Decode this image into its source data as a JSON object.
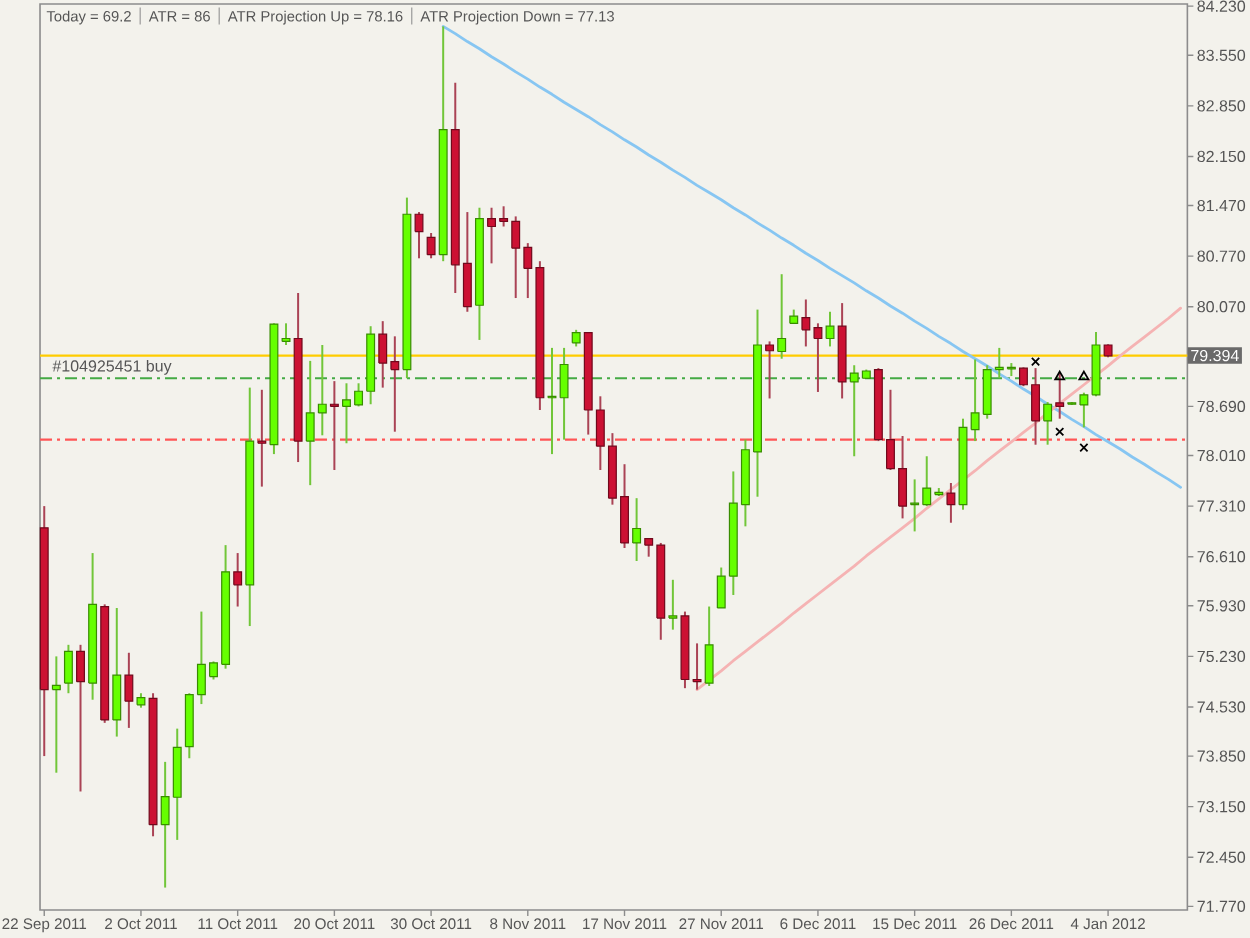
{
  "chart_data": {
    "type": "candlestick",
    "annotations": [
      "Today = 69.2",
      "ATR = 86",
      "ATR Projection Up = 78.16",
      "ATR Projection Down = 77.13"
    ],
    "categories": [
      "22 Sep 2011",
      null,
      null,
      null,
      null,
      null,
      null,
      null,
      "2 Oct 2011",
      null,
      null,
      null,
      null,
      null,
      null,
      null,
      "11 Oct 2011",
      null,
      null,
      null,
      null,
      null,
      null,
      null,
      "20 Oct 2011",
      null,
      null,
      null,
      null,
      null,
      null,
      null,
      "30 Oct 2011",
      null,
      null,
      null,
      null,
      null,
      null,
      null,
      "8 Nov 2011",
      null,
      null,
      null,
      null,
      null,
      null,
      null,
      "17 Nov 2011",
      null,
      null,
      null,
      null,
      null,
      null,
      null,
      "27 Nov 2011",
      null,
      null,
      null,
      null,
      null,
      null,
      null,
      "6 Dec 2011",
      null,
      null,
      null,
      null,
      null,
      null,
      null,
      "15 Dec 2011",
      null,
      null,
      null,
      null,
      null,
      null,
      null,
      "26 Dec 2011",
      null,
      null,
      null,
      null,
      null,
      null,
      null,
      "4 Jan 2012",
      null,
      null,
      null,
      null,
      null,
      null
    ],
    "ohlc": [
      [
        77.01,
        77.31,
        73.85,
        74.77
      ],
      [
        74.77,
        75.23,
        73.62,
        74.83
      ],
      [
        74.86,
        75.39,
        74.72,
        75.3
      ],
      [
        75.3,
        75.39,
        73.36,
        74.88
      ],
      [
        74.86,
        76.66,
        74.63,
        75.95
      ],
      [
        75.92,
        75.95,
        74.31,
        74.35
      ],
      [
        74.35,
        75.9,
        74.12,
        74.97
      ],
      [
        74.97,
        75.28,
        74.24,
        74.61
      ],
      [
        74.56,
        74.72,
        74.52,
        74.66
      ],
      [
        74.65,
        74.72,
        72.74,
        72.9
      ],
      [
        72.9,
        73.77,
        72.03,
        73.29
      ],
      [
        73.28,
        74.23,
        72.69,
        73.97
      ],
      [
        73.98,
        74.72,
        73.82,
        74.7
      ],
      [
        74.7,
        75.85,
        74.57,
        75.12
      ],
      [
        74.95,
        75.16,
        74.91,
        75.14
      ],
      [
        75.12,
        76.77,
        75.06,
        76.4
      ],
      [
        76.4,
        76.66,
        75.92,
        76.22
      ],
      [
        76.22,
        78.95,
        75.65,
        78.21
      ],
      [
        78.21,
        78.92,
        77.58,
        78.18
      ],
      [
        78.16,
        79.84,
        78.03,
        79.83
      ],
      [
        79.59,
        79.84,
        79.54,
        79.63
      ],
      [
        79.63,
        80.26,
        77.92,
        78.21
      ],
      [
        78.21,
        79.32,
        77.6,
        78.6
      ],
      [
        78.6,
        79.54,
        78.29,
        78.72
      ],
      [
        78.72,
        79.04,
        77.81,
        78.69
      ],
      [
        78.69,
        79.01,
        78.18,
        78.78
      ],
      [
        78.71,
        79.01,
        78.69,
        78.9
      ],
      [
        78.9,
        79.8,
        78.72,
        79.69
      ],
      [
        79.69,
        79.87,
        78.95,
        79.29
      ],
      [
        79.31,
        79.66,
        78.34,
        79.2
      ],
      [
        79.2,
        81.58,
        79.08,
        81.35
      ],
      [
        81.35,
        81.38,
        80.74,
        81.11
      ],
      [
        81.03,
        81.09,
        80.74,
        80.79
      ],
      [
        80.79,
        83.95,
        80.7,
        82.52
      ],
      [
        82.52,
        83.17,
        80.26,
        80.65
      ],
      [
        80.67,
        81.38,
        80.0,
        80.07
      ],
      [
        80.09,
        81.44,
        79.61,
        81.29
      ],
      [
        81.29,
        81.44,
        80.67,
        81.18
      ],
      [
        81.29,
        81.46,
        81.18,
        81.25
      ],
      [
        81.25,
        81.32,
        80.19,
        80.88
      ],
      [
        80.89,
        80.95,
        80.19,
        80.6
      ],
      [
        80.61,
        80.7,
        78.64,
        78.81
      ],
      [
        78.81,
        79.5,
        78.03,
        78.83
      ],
      [
        78.81,
        79.5,
        78.23,
        79.27
      ],
      [
        79.57,
        79.75,
        79.52,
        79.71
      ],
      [
        79.71,
        79.72,
        78.3,
        78.64
      ],
      [
        78.64,
        78.83,
        77.81,
        78.14
      ],
      [
        78.14,
        78.32,
        77.33,
        77.42
      ],
      [
        77.44,
        77.89,
        76.73,
        76.8
      ],
      [
        76.8,
        77.42,
        76.55,
        77.0
      ],
      [
        76.86,
        76.86,
        76.61,
        76.77
      ],
      [
        76.77,
        76.8,
        75.46,
        75.76
      ],
      [
        75.76,
        76.29,
        75.6,
        75.79
      ],
      [
        75.79,
        75.85,
        74.79,
        74.91
      ],
      [
        74.91,
        75.41,
        74.77,
        74.88
      ],
      [
        74.86,
        75.92,
        74.82,
        75.39
      ],
      [
        75.9,
        76.46,
        75.9,
        76.34
      ],
      [
        76.34,
        77.79,
        76.08,
        77.35
      ],
      [
        77.33,
        78.23,
        77.03,
        78.09
      ],
      [
        78.06,
        80.03,
        77.44,
        79.54
      ],
      [
        79.54,
        79.59,
        78.8,
        79.46
      ],
      [
        79.45,
        80.52,
        79.35,
        79.63
      ],
      [
        79.84,
        80.03,
        79.84,
        79.94
      ],
      [
        79.92,
        80.17,
        79.52,
        79.75
      ],
      [
        79.78,
        79.84,
        78.89,
        79.63
      ],
      [
        79.63,
        80.0,
        79.52,
        79.8
      ],
      [
        79.8,
        80.12,
        78.8,
        79.03
      ],
      [
        79.03,
        79.26,
        78.0,
        79.15
      ],
      [
        79.08,
        79.2,
        79.08,
        79.18
      ],
      [
        79.2,
        79.22,
        78.21,
        78.23
      ],
      [
        78.23,
        78.92,
        77.81,
        77.83
      ],
      [
        77.83,
        78.28,
        77.14,
        77.31
      ],
      [
        77.33,
        77.68,
        76.96,
        77.35
      ],
      [
        77.33,
        78.0,
        77.31,
        77.56
      ],
      [
        77.47,
        77.56,
        77.45,
        77.5
      ],
      [
        77.49,
        77.63,
        77.08,
        77.33
      ],
      [
        77.33,
        78.52,
        77.26,
        78.4
      ],
      [
        78.37,
        79.34,
        78.21,
        78.6
      ],
      [
        78.58,
        79.26,
        78.52,
        79.2
      ],
      [
        79.2,
        79.5,
        79.08,
        79.23
      ],
      [
        79.21,
        79.29,
        79.11,
        79.23
      ],
      [
        79.22,
        79.23,
        78.97,
        78.99
      ],
      [
        78.99,
        79.22,
        78.16,
        78.49
      ],
      [
        78.49,
        78.75,
        78.16,
        78.72
      ],
      [
        78.74,
        79.15,
        78.52,
        78.69
      ],
      [
        78.72,
        78.75,
        78.71,
        78.74
      ],
      [
        78.71,
        78.88,
        78.4,
        78.85
      ],
      [
        78.85,
        79.72,
        78.83,
        79.54
      ],
      [
        79.54,
        79.55,
        79.37,
        79.39
      ],
      null,
      null,
      null,
      null,
      null,
      null
    ],
    "colors": [
      "#cc1133",
      "#66ff00",
      "#66ff00",
      "#cc1133",
      "#66ff00",
      "#cc1133",
      "#66ff00",
      "#cc1133",
      "#66ff00",
      "#cc1133",
      "#66ff00",
      "#66ff00",
      "#66ff00",
      "#66ff00",
      "#66ff00",
      "#66ff00",
      "#cc1133",
      "#66ff00",
      "#cc1133",
      "#66ff00",
      "#66ff00",
      "#cc1133",
      "#66ff00",
      "#66ff00",
      "#cc1133",
      "#66ff00",
      "#66ff00",
      "#66ff00",
      "#cc1133",
      "#cc1133",
      "#66ff00",
      "#cc1133",
      "#cc1133",
      "#66ff00",
      "#cc1133",
      "#cc1133",
      "#66ff00",
      "#cc1133",
      "#cc1133",
      "#cc1133",
      "#cc1133",
      "#cc1133",
      "#66ff00",
      "#66ff00",
      "#66ff00",
      "#cc1133",
      "#cc1133",
      "#cc1133",
      "#cc1133",
      "#66ff00",
      "#cc1133",
      "#cc1133",
      "#66ff00",
      "#cc1133",
      "#cc1133",
      "#66ff00",
      "#66ff00",
      "#66ff00",
      "#66ff00",
      "#66ff00",
      "#cc1133",
      "#66ff00",
      "#66ff00",
      "#cc1133",
      "#cc1133",
      "#66ff00",
      "#cc1133",
      "#66ff00",
      "#66ff00",
      "#cc1133",
      "#cc1133",
      "#cc1133",
      "#66ff00",
      "#66ff00",
      "#66ff00",
      "#cc1133",
      "#66ff00",
      "#66ff00",
      "#66ff00",
      "#66ff00",
      "#66ff00",
      "#cc1133",
      "#cc1133",
      "#66ff00",
      "#cc1133",
      "#66ff00",
      "#66ff00",
      "#66ff00",
      "#cc1133",
      null,
      null,
      null,
      null,
      null,
      null
    ],
    "series": [
      {
        "type": "line",
        "color": "#87c6f2",
        "values": [
          null,
          null,
          null,
          null,
          null,
          null,
          null,
          null,
          null,
          null,
          null,
          null,
          null,
          null,
          null,
          null,
          null,
          null,
          null,
          null,
          null,
          null,
          null,
          null,
          null,
          null,
          null,
          null,
          null,
          null,
          null,
          null,
          null,
          83.95,
          83.85,
          83.74,
          83.64,
          83.53,
          83.43,
          83.32,
          83.22,
          83.11,
          83.01,
          82.9,
          82.8,
          82.7,
          82.59,
          82.49,
          82.38,
          82.28,
          82.17,
          82.07,
          81.96,
          81.86,
          81.75,
          81.65,
          81.55,
          81.44,
          81.34,
          81.23,
          81.13,
          81.02,
          80.92,
          80.81,
          80.71,
          80.6,
          80.5,
          80.4,
          80.29,
          80.19,
          80.08,
          79.98,
          79.87,
          79.77,
          79.66,
          79.56,
          79.45,
          79.35,
          79.25,
          79.14,
          79.04,
          78.93,
          78.83,
          78.72,
          78.62,
          78.51,
          78.41,
          78.3,
          78.2,
          78.1,
          77.99,
          77.89,
          77.78,
          77.68,
          77.57
        ]
      },
      {
        "type": "line",
        "color": "#f5b3b3",
        "values": [
          null,
          null,
          null,
          null,
          null,
          null,
          null,
          null,
          null,
          null,
          null,
          null,
          null,
          null,
          null,
          null,
          null,
          null,
          null,
          null,
          null,
          null,
          null,
          null,
          null,
          null,
          null,
          null,
          null,
          null,
          null,
          null,
          null,
          null,
          null,
          null,
          null,
          null,
          null,
          null,
          null,
          null,
          null,
          null,
          null,
          null,
          null,
          null,
          null,
          null,
          null,
          null,
          null,
          null,
          74.77,
          74.9,
          75.03,
          75.17,
          75.3,
          75.43,
          75.56,
          75.69,
          75.83,
          75.96,
          76.09,
          76.22,
          76.35,
          76.48,
          76.62,
          76.75,
          76.88,
          77.01,
          77.14,
          77.28,
          77.41,
          77.54,
          77.67,
          77.8,
          77.94,
          78.07,
          78.2,
          78.33,
          78.46,
          78.6,
          78.73,
          78.86,
          78.99,
          79.12,
          79.25,
          79.39,
          79.52,
          79.65,
          79.78,
          79.91,
          80.05
        ]
      },
      {
        "type": "scatter",
        "color": "#000000",
        "marker": "cross",
        "values": [
          null,
          null,
          null,
          null,
          null,
          null,
          null,
          null,
          null,
          null,
          null,
          null,
          null,
          null,
          null,
          null,
          null,
          null,
          null,
          null,
          null,
          null,
          null,
          null,
          null,
          null,
          null,
          null,
          null,
          null,
          null,
          null,
          null,
          null,
          null,
          null,
          null,
          null,
          null,
          null,
          null,
          null,
          null,
          null,
          null,
          null,
          null,
          null,
          null,
          null,
          null,
          null,
          null,
          null,
          null,
          null,
          null,
          null,
          null,
          null,
          null,
          null,
          null,
          null,
          null,
          null,
          null,
          null,
          null,
          null,
          null,
          null,
          null,
          null,
          null,
          null,
          null,
          null,
          null,
          null,
          null,
          null,
          79.31,
          null,
          78.34,
          null,
          78.12,
          null,
          null,
          null,
          null,
          null,
          null,
          null,
          null
        ]
      },
      {
        "type": "scatter",
        "color": "#000000",
        "marker": "triangle",
        "values": [
          null,
          null,
          null,
          null,
          null,
          null,
          null,
          null,
          null,
          null,
          null,
          null,
          null,
          null,
          null,
          null,
          null,
          null,
          null,
          null,
          null,
          null,
          null,
          null,
          null,
          null,
          null,
          null,
          null,
          null,
          null,
          null,
          null,
          null,
          null,
          null,
          null,
          null,
          null,
          null,
          null,
          null,
          null,
          null,
          null,
          null,
          null,
          null,
          null,
          null,
          null,
          null,
          null,
          null,
          null,
          null,
          null,
          null,
          null,
          null,
          null,
          null,
          null,
          null,
          null,
          null,
          null,
          null,
          null,
          null,
          null,
          null,
          null,
          null,
          null,
          null,
          null,
          null,
          null,
          null,
          null,
          null,
          null,
          null,
          79.1,
          null,
          79.1,
          null,
          null,
          null,
          null,
          null,
          null,
          null,
          null
        ]
      }
    ],
    "ylim": [
      71.72,
      84.26
    ],
    "yticks": [
      {
        "value": 84.23,
        "label": "84.230"
      },
      {
        "value": 83.55,
        "label": "83.550"
      },
      {
        "value": 82.85,
        "label": "82.850"
      },
      {
        "value": 82.15,
        "label": "82.150"
      },
      {
        "value": 81.47,
        "label": "81.470"
      },
      {
        "value": 80.77,
        "label": "80.770"
      },
      {
        "value": 80.07,
        "label": "80.070"
      },
      {
        "value": 78.69,
        "label": "78.690"
      },
      {
        "value": 78.01,
        "label": "78.010"
      },
      {
        "value": 77.31,
        "label": "77.310"
      },
      {
        "value": 76.61,
        "label": "76.610"
      },
      {
        "value": 75.93,
        "label": "75.930"
      },
      {
        "value": 75.23,
        "label": "75.230"
      },
      {
        "value": 74.53,
        "label": "74.530"
      },
      {
        "value": 73.85,
        "label": "73.850"
      },
      {
        "value": 73.15,
        "label": "73.150"
      },
      {
        "value": 72.45,
        "label": "72.450"
      },
      {
        "value": 71.77,
        "label": "71.770"
      }
    ],
    "ref_lines": [
      {
        "axis": "y",
        "value": 79.394,
        "label": "79.394",
        "color": "#ffcc00",
        "line_style": "solid"
      },
      {
        "axis": "y",
        "value": 79.08,
        "label": "#104925451 buy",
        "color": "#44aa44",
        "line_style": "dashed"
      },
      {
        "axis": "y",
        "value": 78.23,
        "color": "#ff5555",
        "line_style": "dashed"
      }
    ]
  }
}
